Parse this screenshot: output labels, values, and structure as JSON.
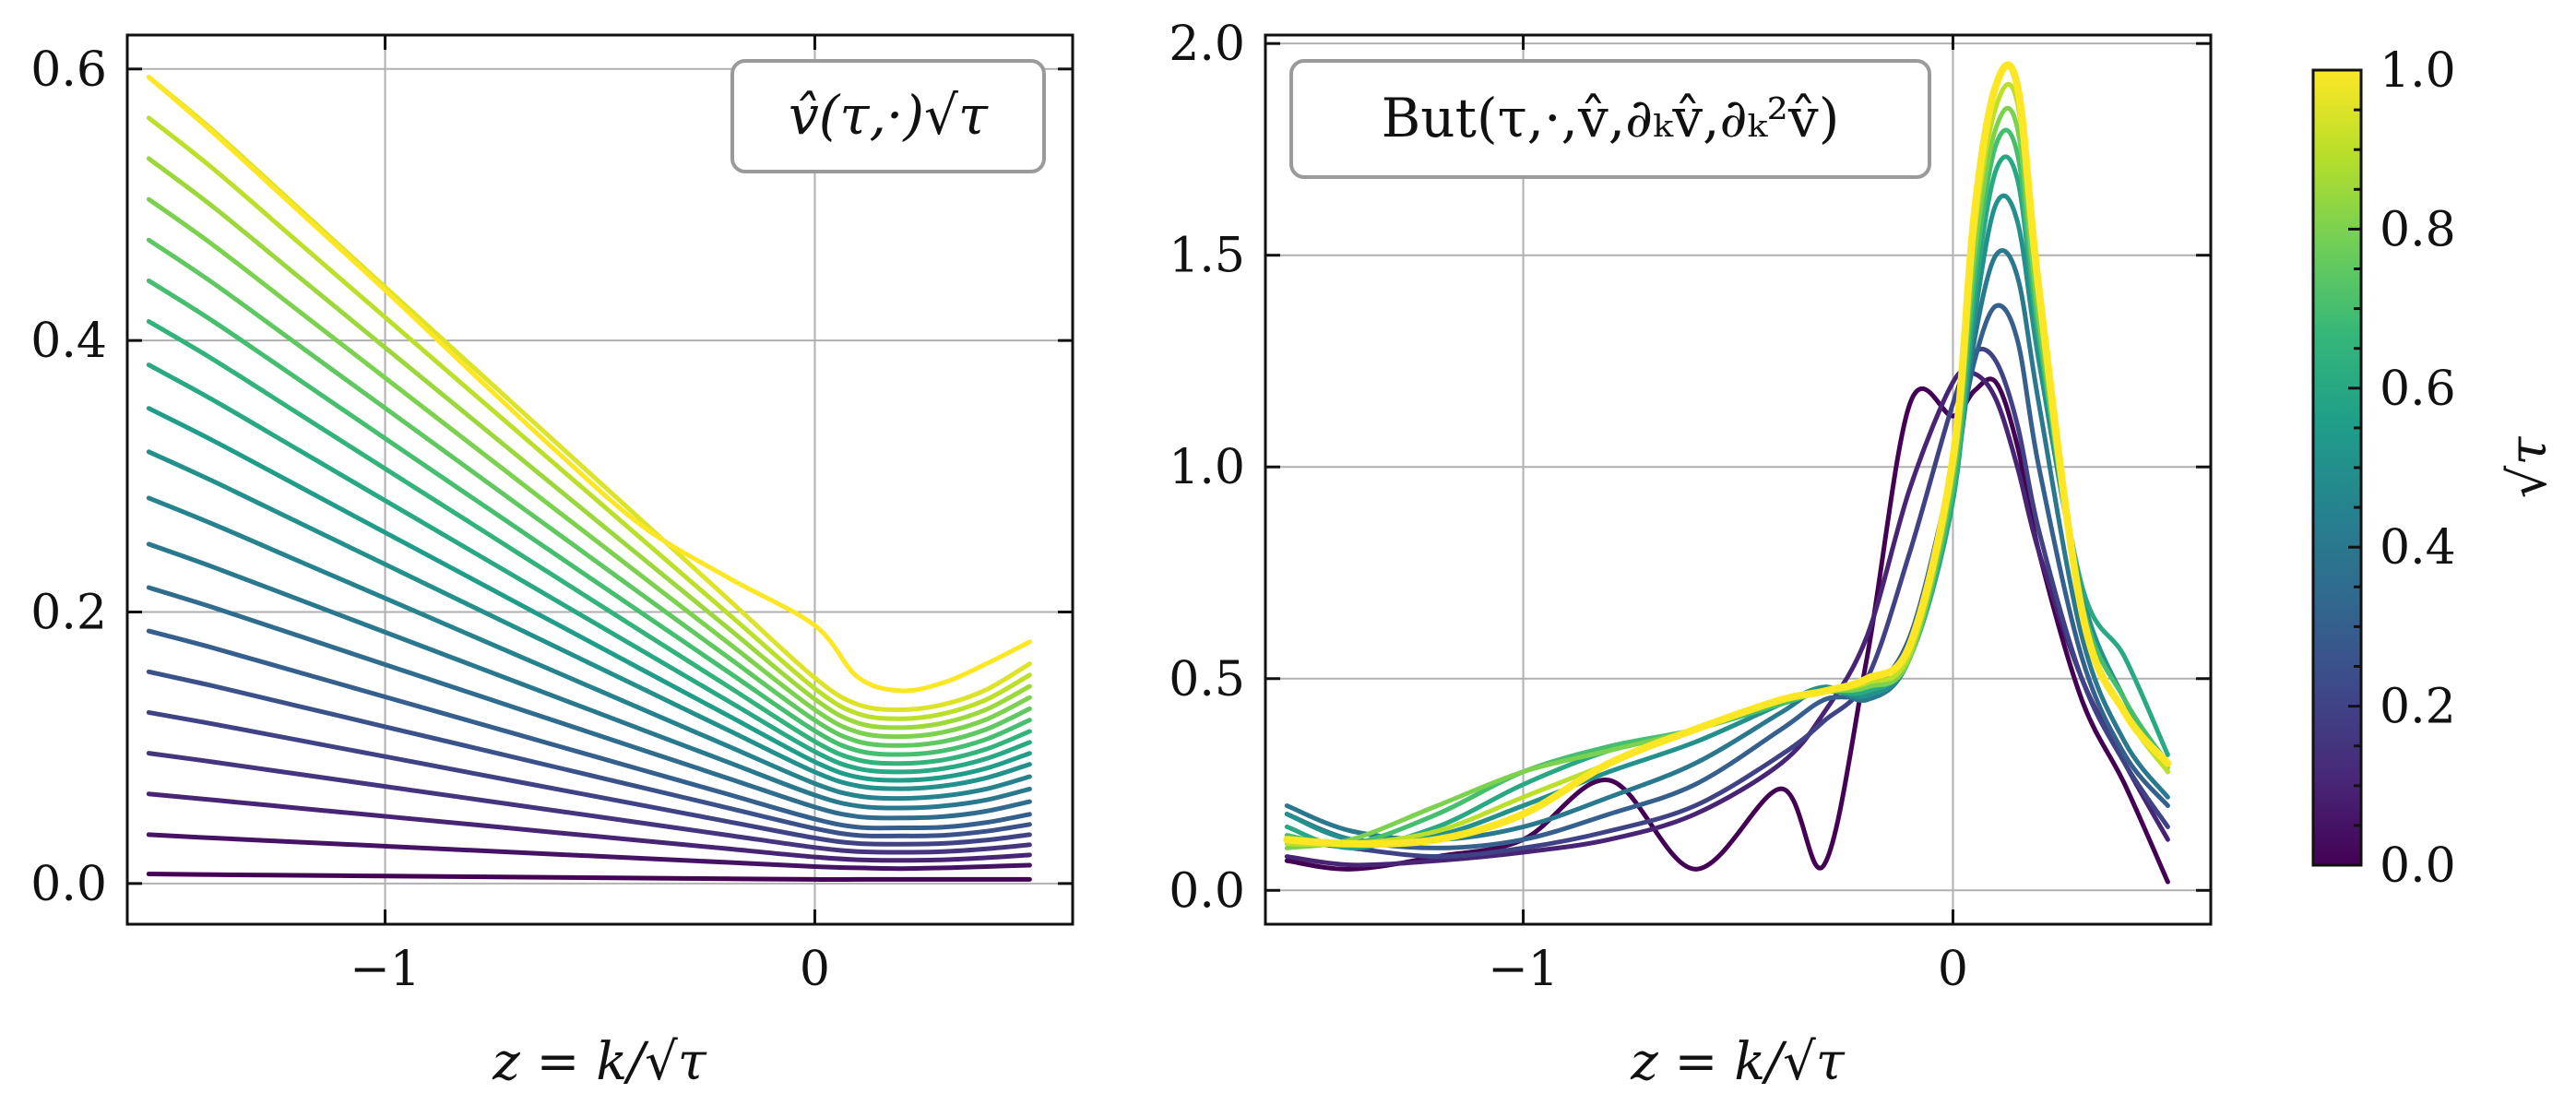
{
  "colormap": [
    "#440154",
    "#482878",
    "#3e4989",
    "#31688e",
    "#26828e",
    "#1f9e89",
    "#35b779",
    "#6ece58",
    "#b5de2b",
    "#fde725"
  ],
  "chart_data": [
    {
      "type": "line",
      "legend_label": "v̂(τ,·)√τ",
      "xlabel": "z = k/√τ",
      "ylabel": "",
      "xlim": [
        -1.6,
        0.6
      ],
      "ylim": [
        -0.03,
        0.625
      ],
      "xticks": [
        {
          "v": -1,
          "label": "−1"
        },
        {
          "v": 0,
          "label": "0"
        }
      ],
      "yticks": [
        {
          "v": 0.0,
          "label": "0.0"
        },
        {
          "v": 0.2,
          "label": "0.2"
        },
        {
          "v": 0.4,
          "label": "0.4"
        },
        {
          "v": 0.6,
          "label": "0.6"
        }
      ],
      "grid": true,
      "legend_position": "top-right",
      "x": [
        -1.55,
        -1.4,
        -1.2,
        -1.0,
        -0.8,
        -0.6,
        -0.4,
        -0.2,
        0.0,
        0.1,
        0.2,
        0.3,
        0.4,
        0.5
      ],
      "series": [
        {
          "name": "√τ=0.00",
          "values": [
            0.007,
            0.0065,
            0.006,
            0.0055,
            0.005,
            0.0045,
            0.004,
            0.0035,
            0.003,
            0.003,
            0.003,
            0.003,
            0.003,
            0.003
          ]
        },
        {
          "name": "√τ=0.05",
          "values": [
            0.036,
            0.0335,
            0.0305,
            0.0275,
            0.0245,
            0.0215,
            0.0185,
            0.0155,
            0.0125,
            0.0115,
            0.011,
            0.0115,
            0.0125,
            0.0135
          ]
        },
        {
          "name": "√τ=0.10",
          "values": [
            0.066,
            0.0615,
            0.0555,
            0.0495,
            0.0435,
            0.0375,
            0.0315,
            0.0255,
            0.0195,
            0.0175,
            0.017,
            0.0175,
            0.019,
            0.021
          ]
        },
        {
          "name": "√τ=0.15",
          "values": [
            0.096,
            0.0895,
            0.0805,
            0.0715,
            0.0625,
            0.0535,
            0.0445,
            0.0355,
            0.0265,
            0.0235,
            0.023,
            0.0235,
            0.0255,
            0.0285
          ]
        },
        {
          "name": "√τ=0.20",
          "values": [
            0.126,
            0.1175,
            0.1055,
            0.0935,
            0.0815,
            0.0695,
            0.0575,
            0.0455,
            0.0335,
            0.0295,
            0.029,
            0.0295,
            0.032,
            0.036
          ]
        },
        {
          "name": "√τ=0.25",
          "values": [
            0.156,
            0.1455,
            0.1305,
            0.1155,
            0.1005,
            0.0855,
            0.0705,
            0.0555,
            0.0405,
            0.0355,
            0.035,
            0.0355,
            0.0385,
            0.0435
          ]
        },
        {
          "name": "√τ=0.30",
          "values": [
            0.186,
            0.1735,
            0.1555,
            0.1375,
            0.1195,
            0.1015,
            0.0835,
            0.0655,
            0.0475,
            0.0415,
            0.041,
            0.0415,
            0.045,
            0.051
          ]
        },
        {
          "name": "√τ=0.35",
          "values": [
            0.218,
            0.2033,
            0.1823,
            0.1613,
            0.1403,
            0.1193,
            0.0983,
            0.0773,
            0.0563,
            0.0493,
            0.0483,
            0.0493,
            0.0533,
            0.0603
          ]
        },
        {
          "name": "√τ=0.40",
          "values": [
            0.25,
            0.2331,
            0.2091,
            0.1851,
            0.1611,
            0.1371,
            0.1131,
            0.0891,
            0.0651,
            0.0571,
            0.0556,
            0.0571,
            0.0616,
            0.0696
          ]
        },
        {
          "name": "√τ=0.45",
          "values": [
            0.284,
            0.2647,
            0.2374,
            0.2101,
            0.1828,
            0.1555,
            0.1282,
            0.1009,
            0.0736,
            0.0645,
            0.0627,
            0.0645,
            0.0697,
            0.0787
          ]
        },
        {
          "name": "√τ=0.50",
          "values": [
            0.318,
            0.2963,
            0.2657,
            0.2351,
            0.2045,
            0.1739,
            0.1433,
            0.1127,
            0.0821,
            0.0719,
            0.0698,
            0.0719,
            0.0778,
            0.0878
          ]
        },
        {
          "name": "√τ=0.55",
          "values": [
            0.35,
            0.3262,
            0.2924,
            0.2586,
            0.2248,
            0.191,
            0.1572,
            0.1234,
            0.0896,
            0.0783,
            0.076,
            0.0783,
            0.0849,
            0.0959
          ]
        },
        {
          "name": "√τ=0.60",
          "values": [
            0.382,
            0.3561,
            0.3191,
            0.2821,
            0.2451,
            0.2081,
            0.1711,
            0.1341,
            0.0971,
            0.0847,
            0.0822,
            0.0847,
            0.092,
            0.104
          ]
        },
        {
          "name": "√τ=0.65",
          "values": [
            0.414,
            0.386,
            0.3458,
            0.3056,
            0.2654,
            0.2252,
            0.185,
            0.1448,
            0.1046,
            0.0911,
            0.0884,
            0.0911,
            0.0991,
            0.1121
          ]
        },
        {
          "name": "√τ=0.70",
          "values": [
            0.444,
            0.4141,
            0.371,
            0.3279,
            0.2848,
            0.2417,
            0.1986,
            0.1555,
            0.1124,
            0.0979,
            0.095,
            0.0979,
            0.1064,
            0.1204
          ]
        },
        {
          "name": "√τ=0.75",
          "values": [
            0.474,
            0.4422,
            0.3962,
            0.3502,
            0.3042,
            0.2582,
            0.2122,
            0.1662,
            0.1202,
            0.1047,
            0.1016,
            0.1047,
            0.1137,
            0.1287
          ]
        },
        {
          "name": "√τ=0.80",
          "values": [
            0.504,
            0.4703,
            0.4214,
            0.3725,
            0.3236,
            0.2747,
            0.2258,
            0.1769,
            0.128,
            0.1115,
            0.1082,
            0.1115,
            0.121,
            0.137
          ]
        },
        {
          "name": "√τ=0.85",
          "values": [
            0.534,
            0.4984,
            0.4466,
            0.3948,
            0.343,
            0.2912,
            0.2394,
            0.1876,
            0.1358,
            0.1183,
            0.1148,
            0.1183,
            0.1283,
            0.1453
          ]
        },
        {
          "name": "√τ=0.90",
          "values": [
            0.564,
            0.5265,
            0.4718,
            0.4171,
            0.3624,
            0.3077,
            0.253,
            0.1983,
            0.1436,
            0.1251,
            0.1214,
            0.1251,
            0.1356,
            0.1536
          ]
        },
        {
          "name": "√τ=0.95",
          "values": [
            0.594,
            0.5546,
            0.497,
            0.4394,
            0.3818,
            0.3242,
            0.2666,
            0.209,
            0.1514,
            0.1319,
            0.128,
            0.1319,
            0.1429,
            0.1619
          ]
        },
        {
          "name": "√τ=1.00",
          "values": [
            0.594,
            0.553,
            0.495,
            0.437,
            0.377,
            0.318,
            0.263,
            0.225,
            0.19,
            0.152,
            0.142,
            0.148,
            0.162,
            0.178
          ]
        }
      ]
    },
    {
      "type": "line",
      "legend_label": "But(τ,·,v̂,∂ₖv̂,∂ₖ²v̂)",
      "xlabel": "z = k/√τ",
      "ylabel": "",
      "xlim": [
        -1.6,
        0.6
      ],
      "ylim": [
        -0.08,
        2.02
      ],
      "xticks": [
        {
          "v": -1,
          "label": "−1"
        },
        {
          "v": 0,
          "label": "0"
        }
      ],
      "yticks": [
        {
          "v": 0.0,
          "label": "0.0"
        },
        {
          "v": 0.5,
          "label": "0.5"
        },
        {
          "v": 1.0,
          "label": "1.0"
        },
        {
          "v": 1.5,
          "label": "1.5"
        },
        {
          "v": 2.0,
          "label": "2.0"
        }
      ],
      "grid": true,
      "legend_position": "top-left",
      "x": [
        -1.55,
        -1.4,
        -1.2,
        -1.0,
        -0.8,
        -0.6,
        -0.4,
        -0.3,
        -0.2,
        -0.1,
        0.0,
        0.05,
        0.1,
        0.15,
        0.2,
        0.3,
        0.4,
        0.5
      ],
      "series": [
        {
          "name": "√τ=0.00",
          "values": [
            0.07,
            0.05,
            0.08,
            0.12,
            0.26,
            0.05,
            0.24,
            0.06,
            0.55,
            1.15,
            1.12,
            1.18,
            1.2,
            1.05,
            0.8,
            0.45,
            0.25,
            0.02
          ]
        },
        {
          "name": "√τ=0.10",
          "values": [
            0.08,
            0.06,
            0.07,
            0.09,
            0.12,
            0.18,
            0.3,
            0.42,
            0.6,
            0.95,
            1.2,
            1.22,
            1.16,
            1.0,
            0.8,
            0.5,
            0.3,
            0.12
          ]
        },
        {
          "name": "√τ=0.20",
          "values": [
            0.12,
            0.1,
            0.08,
            0.1,
            0.14,
            0.2,
            0.32,
            0.4,
            0.5,
            0.8,
            1.15,
            1.27,
            1.25,
            1.1,
            0.85,
            0.5,
            0.3,
            0.15
          ]
        },
        {
          "name": "√τ=0.30",
          "values": [
            0.18,
            0.12,
            0.1,
            0.12,
            0.18,
            0.25,
            0.38,
            0.45,
            0.47,
            0.6,
            1.0,
            1.25,
            1.38,
            1.3,
            1.0,
            0.55,
            0.32,
            0.2
          ]
        },
        {
          "name": "√τ=0.40",
          "values": [
            0.2,
            0.14,
            0.12,
            0.15,
            0.22,
            0.3,
            0.42,
            0.48,
            0.45,
            0.55,
            0.95,
            1.3,
            1.5,
            1.45,
            1.15,
            0.6,
            0.35,
            0.22
          ]
        },
        {
          "name": "√τ=0.50",
          "values": [
            0.18,
            0.12,
            0.13,
            0.2,
            0.28,
            0.35,
            0.44,
            0.48,
            0.46,
            0.55,
            0.95,
            1.35,
            1.62,
            1.58,
            1.25,
            0.7,
            0.45,
            0.28
          ]
        },
        {
          "name": "√τ=0.60",
          "values": [
            0.15,
            0.1,
            0.15,
            0.25,
            0.33,
            0.38,
            0.45,
            0.47,
            0.47,
            0.55,
            0.92,
            1.4,
            1.7,
            1.68,
            1.3,
            0.72,
            0.55,
            0.32
          ]
        },
        {
          "name": "√τ=0.70",
          "values": [
            0.13,
            0.11,
            0.18,
            0.28,
            0.34,
            0.38,
            0.44,
            0.47,
            0.48,
            0.55,
            0.95,
            1.45,
            1.76,
            1.74,
            1.32,
            0.68,
            0.45,
            0.3
          ]
        },
        {
          "name": "√τ=0.80",
          "values": [
            0.1,
            0.12,
            0.2,
            0.28,
            0.33,
            0.38,
            0.45,
            0.47,
            0.48,
            0.55,
            0.98,
            1.5,
            1.8,
            1.8,
            1.35,
            0.66,
            0.42,
            0.29
          ]
        },
        {
          "name": "√τ=0.90",
          "values": [
            0.11,
            0.11,
            0.14,
            0.22,
            0.3,
            0.38,
            0.45,
            0.47,
            0.49,
            0.56,
            1.0,
            1.55,
            1.85,
            1.86,
            1.4,
            0.66,
            0.42,
            0.28
          ]
        },
        {
          "name": "√τ=1.00",
          "values": [
            0.12,
            0.11,
            0.12,
            0.18,
            0.3,
            0.38,
            0.45,
            0.47,
            0.5,
            0.58,
            1.02,
            1.6,
            1.9,
            1.9,
            1.42,
            0.66,
            0.42,
            0.3
          ]
        }
      ]
    }
  ],
  "colorbar": {
    "label": "√τ",
    "range": [
      0.0,
      1.0
    ],
    "ticks": [
      {
        "v": 0.0,
        "label": "0.0"
      },
      {
        "v": 0.2,
        "label": "0.2"
      },
      {
        "v": 0.4,
        "label": "0.4"
      },
      {
        "v": 0.6,
        "label": "0.6"
      },
      {
        "v": 0.8,
        "label": "0.8"
      },
      {
        "v": 1.0,
        "label": "1.0"
      }
    ]
  }
}
